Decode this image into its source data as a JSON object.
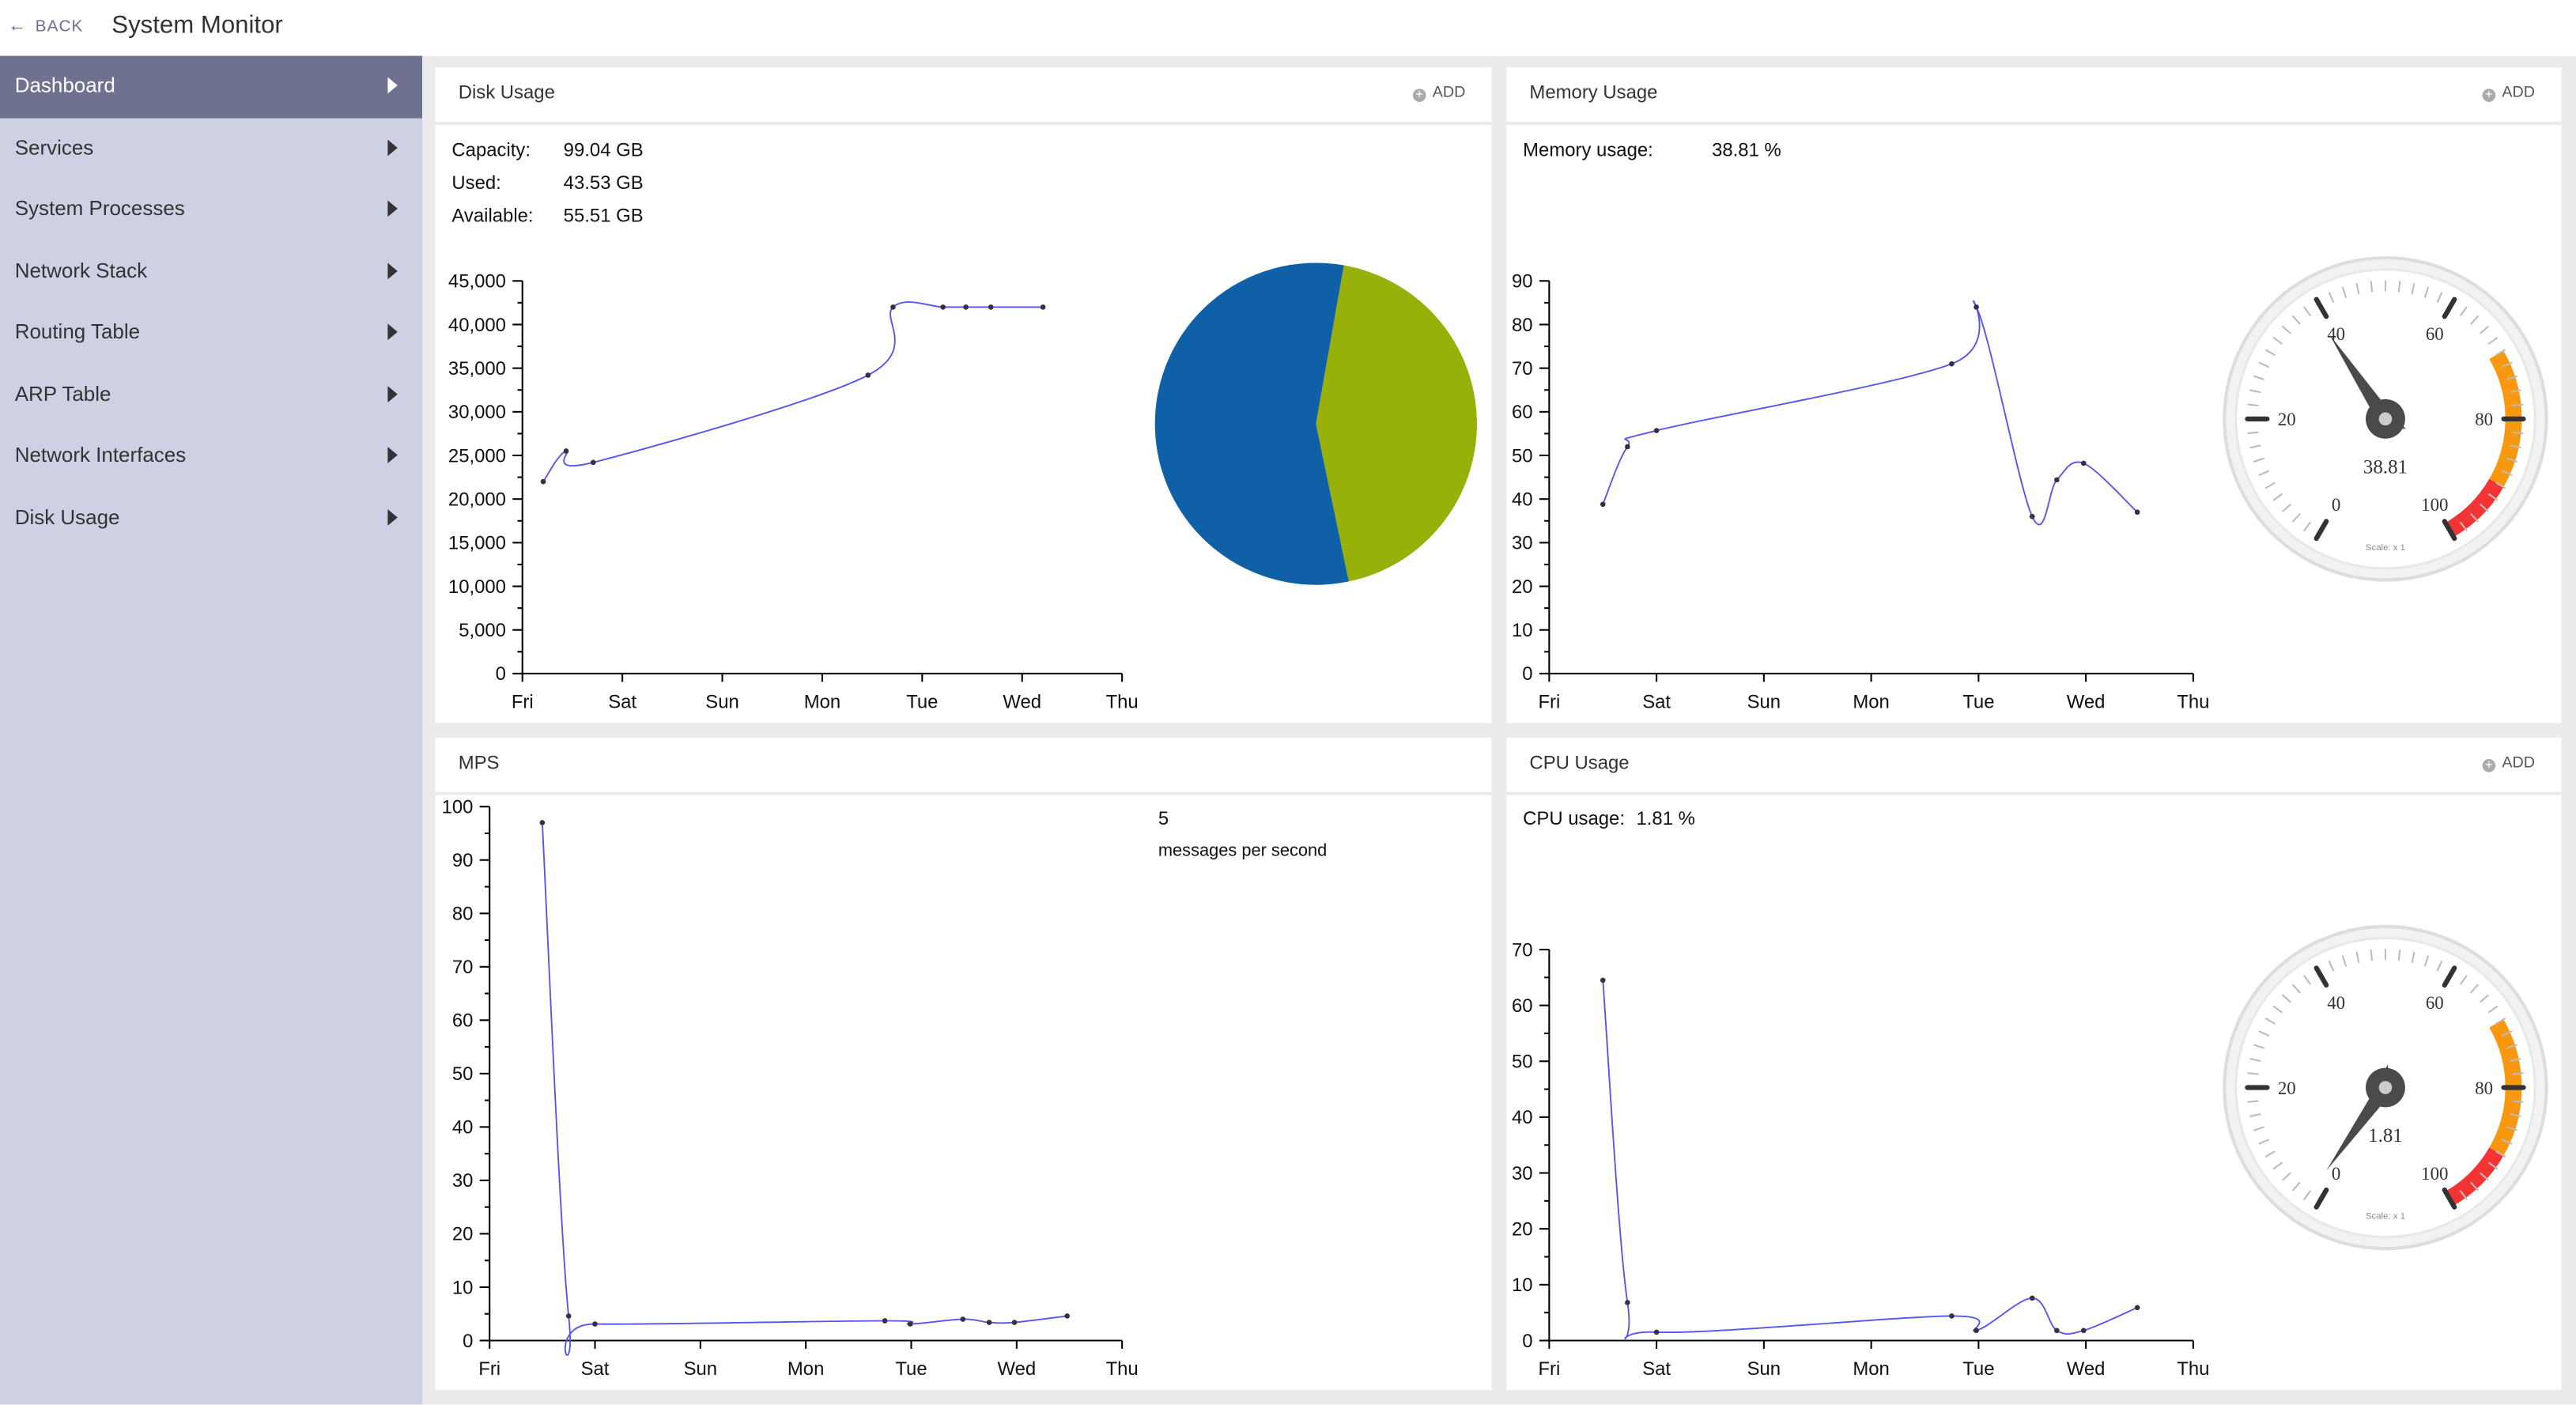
{
  "header": {
    "back_label": "BACK",
    "back_icon": "arrow-left-icon",
    "title": "System Monitor"
  },
  "sidebar": {
    "items": [
      {
        "label": "Dashboard",
        "active": true
      },
      {
        "label": "Services"
      },
      {
        "label": "System Processes"
      },
      {
        "label": "Network Stack"
      },
      {
        "label": "Routing Table"
      },
      {
        "label": "ARP Table"
      },
      {
        "label": "Network Interfaces"
      },
      {
        "label": "Disk Usage"
      }
    ]
  },
  "panels": {
    "disk": {
      "title": "Disk Usage",
      "add_label": "ADD",
      "stats": [
        {
          "label": "Capacity:",
          "value": "99.04 GB"
        },
        {
          "label": "Used:",
          "value": "43.53 GB"
        },
        {
          "label": "Available:",
          "value": "55.51 GB"
        }
      ]
    },
    "memory": {
      "title": "Memory Usage",
      "add_label": "ADD",
      "stat_label": "Memory usage:",
      "stat_value": "38.81 %"
    },
    "mps": {
      "title": "MPS",
      "value": "5",
      "unit": "messages per second"
    },
    "cpu": {
      "title": "CPU Usage",
      "add_label": "ADD",
      "stat_label": "CPU usage:",
      "stat_value": "1.81 %"
    }
  },
  "colors": {
    "line": "#5555ee",
    "pie_available": "#1060a8",
    "pie_used": "#97b00a",
    "gauge_orange": "#f7980e",
    "gauge_red": "#f43434",
    "sidebar_active": "#6e7190",
    "sidebar_bg": "#ced1e3"
  },
  "chart_data": [
    {
      "id": "disk-line",
      "type": "line",
      "xticks": [
        "Fri",
        "Sat",
        "Sun",
        "Mon",
        "Tue",
        "Wed",
        "Thu"
      ],
      "ylim": [
        0,
        45000
      ],
      "yticks": [
        0,
        5000,
        10000,
        15000,
        20000,
        25000,
        30000,
        35000,
        40000,
        45000
      ],
      "ytick_labels": [
        "0",
        "5,000",
        "10,000",
        "15,000",
        "20,000",
        "25,000",
        "30,000",
        "35,000",
        "40,000",
        "45,000"
      ],
      "x": [
        "Fri 05:00",
        "Fri 10:30",
        "Fri 17:00",
        "Mon 11:00",
        "Mon 17:00",
        "Tue 05:00",
        "Tue 10:30",
        "Tue 16:30",
        "Wed 05:00"
      ],
      "y": [
        22000,
        25500,
        24200,
        34200,
        42000,
        42000,
        42000,
        42000,
        42000
      ]
    },
    {
      "id": "disk-pie",
      "type": "pie",
      "slices": [
        {
          "label": "Used",
          "value": 43.53,
          "color": "#97b00a"
        },
        {
          "label": "Available",
          "value": 55.51,
          "color": "#1060a8"
        }
      ]
    },
    {
      "id": "memory-line",
      "type": "line",
      "xticks": [
        "Fri",
        "Sat",
        "Sun",
        "Mon",
        "Tue",
        "Wed",
        "Thu"
      ],
      "ylim": [
        0,
        90
      ],
      "yticks": [
        0,
        10,
        20,
        30,
        40,
        50,
        60,
        70,
        80,
        90
      ],
      "ytick_labels": [
        "0",
        "10",
        "20",
        "30",
        "40",
        "50",
        "60",
        "70",
        "80",
        "90"
      ],
      "x": [
        "Fri 12:00",
        "Fri 17:30",
        "Sat 00:00",
        "Mon 18:00",
        "Mon 23:30",
        "Tue 12:00",
        "Tue 17:30",
        "Tue 23:30",
        "Wed 11:30"
      ],
      "y": [
        38.8,
        52,
        55.7,
        71,
        84,
        36,
        44.4,
        48.2,
        37
      ]
    },
    {
      "id": "memory-gauge",
      "type": "gauge",
      "value": 38.81,
      "value_label": "38.81",
      "range": [
        0,
        100
      ],
      "major_labels": [
        "0",
        "20",
        "40",
        "60",
        "80",
        "100"
      ],
      "scale_label": "Scale: x 1",
      "bands": [
        {
          "from": 70,
          "to": 90,
          "color": "#f7980e"
        },
        {
          "from": 90,
          "to": 100,
          "color": "#f43434"
        }
      ]
    },
    {
      "id": "mps-line",
      "type": "line",
      "xticks": [
        "Fri",
        "Sat",
        "Sun",
        "Mon",
        "Tue",
        "Wed",
        "Thu"
      ],
      "ylim": [
        0,
        100
      ],
      "yticks": [
        0,
        10,
        20,
        30,
        40,
        50,
        60,
        70,
        80,
        90,
        100
      ],
      "ytick_labels": [
        "0",
        "10",
        "20",
        "30",
        "40",
        "50",
        "60",
        "70",
        "80",
        "90",
        "100"
      ],
      "x": [
        "Fri 12:00",
        "Fri 18:00",
        "Sat 00:00",
        "Mon 18:00",
        "Mon 23:45",
        "Tue 11:45",
        "Tue 17:45",
        "Tue 23:30",
        "Wed 11:30"
      ],
      "y": [
        97,
        4.6,
        3.1,
        3.7,
        3.1,
        4,
        3.4,
        3.4,
        4.6
      ]
    },
    {
      "id": "cpu-line",
      "type": "line",
      "xticks": [
        "Fri",
        "Sat",
        "Sun",
        "Mon",
        "Tue",
        "Wed",
        "Thu"
      ],
      "ylim": [
        0,
        70
      ],
      "yticks": [
        0,
        10,
        20,
        30,
        40,
        50,
        60,
        70
      ],
      "ytick_labels": [
        "0",
        "10",
        "20",
        "30",
        "40",
        "50",
        "60",
        "70"
      ],
      "x": [
        "Fri 12:00",
        "Fri 17:30",
        "Sat 00:00",
        "Mon 18:00",
        "Mon 23:30",
        "Tue 12:00",
        "Tue 17:30",
        "Tue 23:30",
        "Wed 11:30"
      ],
      "y": [
        64.5,
        6.8,
        1.5,
        4.4,
        1.8,
        7.6,
        1.8,
        1.8,
        5.9
      ]
    },
    {
      "id": "cpu-gauge",
      "type": "gauge",
      "value": 1.81,
      "value_label": "1.81",
      "range": [
        0,
        100
      ],
      "major_labels": [
        "0",
        "20",
        "40",
        "60",
        "80",
        "100"
      ],
      "scale_label": "Scale: x 1",
      "bands": [
        {
          "from": 70,
          "to": 90,
          "color": "#f7980e"
        },
        {
          "from": 90,
          "to": 100,
          "color": "#f43434"
        }
      ]
    }
  ]
}
